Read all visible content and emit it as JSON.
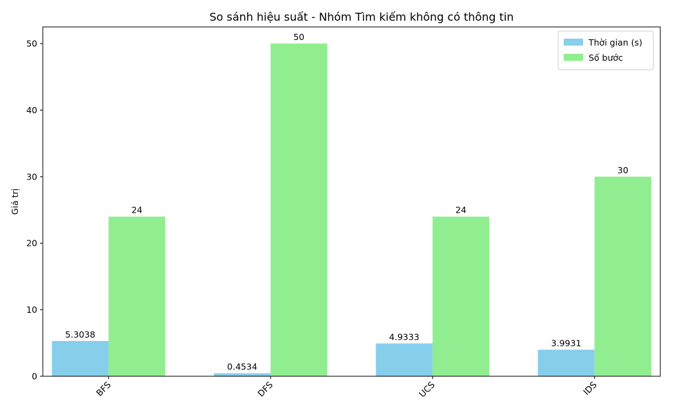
{
  "chart_data": {
    "type": "bar",
    "title": "So sánh hiệu suất - Nhóm Tìm kiếm không có thông tin",
    "xlabel": "",
    "ylabel": "Giá trị",
    "categories": [
      "BFS",
      "DFS",
      "UCS",
      "IDS"
    ],
    "series": [
      {
        "name": "Thời gian (s)",
        "values": [
          5.3038,
          0.4534,
          4.9333,
          3.9931
        ],
        "labels": [
          "5.3038",
          "0.4534",
          "4.9333",
          "3.9931"
        ],
        "color": "#87ceeb"
      },
      {
        "name": "Số bước",
        "values": [
          24,
          50,
          24,
          30
        ],
        "labels": [
          "24",
          "50",
          "24",
          "30"
        ],
        "color": "#90ee90"
      }
    ],
    "ylim": [
      0,
      52.5
    ],
    "yticks": [
      0,
      10,
      20,
      30,
      40,
      50
    ],
    "xtick_rotation": 45,
    "grid": false,
    "legend_position": "top-right"
  }
}
